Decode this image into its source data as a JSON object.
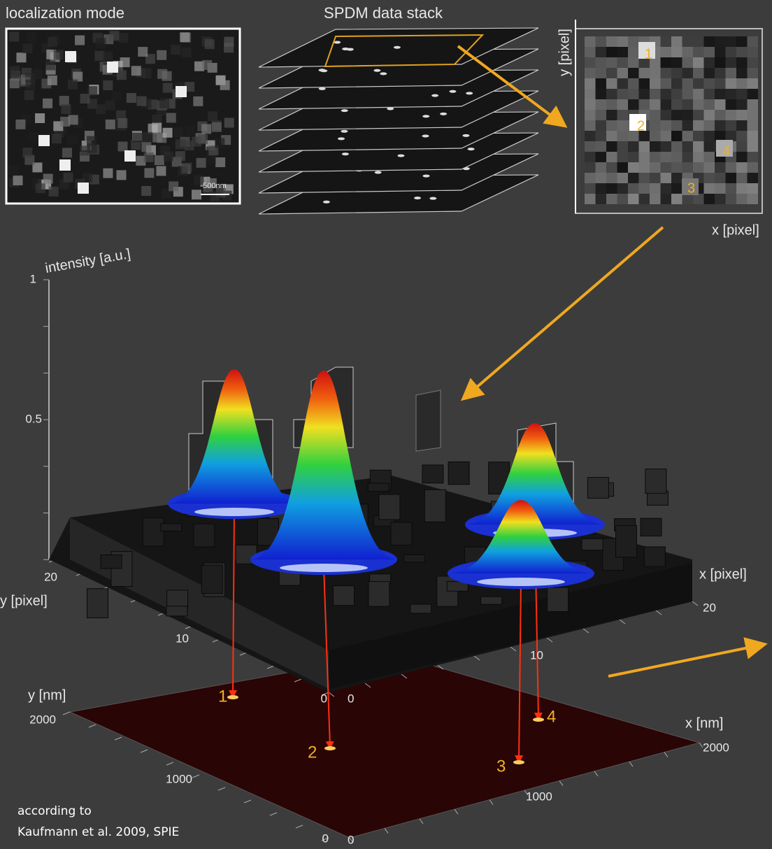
{
  "panels": {
    "localization": {
      "title": "localization mode",
      "scale_bar": "500nm"
    },
    "stack": {
      "title": "SPDM data stack"
    },
    "inset": {
      "y_label": "y [pixel]",
      "x_label": "x [pixel]",
      "spots": [
        "1",
        "2",
        "3",
        "4"
      ]
    }
  },
  "plot3d": {
    "z_label": "intensity [a.u.]",
    "z_ticks": [
      "1",
      "0.5"
    ],
    "y_label": "y [pixel]",
    "y_ticks": [
      "20",
      "10",
      "0"
    ],
    "x_label": "x [pixel]",
    "x_ticks": [
      "0",
      "10",
      "20"
    ]
  },
  "floor": {
    "y_label": "y [nm]",
    "y_ticks": [
      "2000",
      "1000",
      "0"
    ],
    "x_label": "x [nm]",
    "x_ticks": [
      "0",
      "1000",
      "2000"
    ],
    "points": [
      "1",
      "2",
      "3",
      "4"
    ]
  },
  "credit": [
    "according to",
    "Kaufmann et al. 2009, SPIE"
  ]
}
